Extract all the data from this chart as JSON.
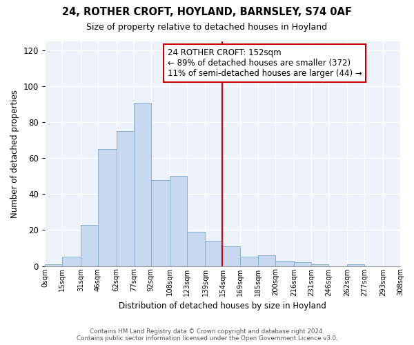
{
  "title": "24, ROTHER CROFT, HOYLAND, BARNSLEY, S74 0AF",
  "subtitle": "Size of property relative to detached houses in Hoyland",
  "xlabel": "Distribution of detached houses by size in Hoyland",
  "ylabel": "Number of detached properties",
  "bar_color": "#c8d8f0",
  "bar_edgecolor": "#8ab0d0",
  "bin_labels": [
    "0sqm",
    "15sqm",
    "31sqm",
    "46sqm",
    "62sqm",
    "77sqm",
    "92sqm",
    "108sqm",
    "123sqm",
    "139sqm",
    "154sqm",
    "169sqm",
    "185sqm",
    "200sqm",
    "216sqm",
    "231sqm",
    "246sqm",
    "262sqm",
    "277sqm",
    "293sqm",
    "308sqm"
  ],
  "bin_edges": [
    0,
    15,
    31,
    46,
    62,
    77,
    92,
    108,
    123,
    139,
    154,
    169,
    185,
    200,
    216,
    231,
    246,
    262,
    277,
    293,
    308
  ],
  "counts": [
    1,
    5,
    23,
    65,
    75,
    91,
    48,
    50,
    19,
    14,
    11,
    5,
    6,
    3,
    2,
    1,
    0,
    1,
    0,
    0
  ],
  "vline_x": 154,
  "vline_color": "#cc0000",
  "annotation_text": "24 ROTHER CROFT: 152sqm\n← 89% of detached houses are smaller (372)\n11% of semi-detached houses are larger (44) →",
  "ylim": [
    0,
    125
  ],
  "yticks": [
    0,
    20,
    40,
    60,
    80,
    100,
    120
  ],
  "footer_line1": "Contains HM Land Registry data © Crown copyright and database right 2024.",
  "footer_line2": "Contains public sector information licensed under the Open Government Licence v3.0.",
  "bg_color": "#eef2fa"
}
